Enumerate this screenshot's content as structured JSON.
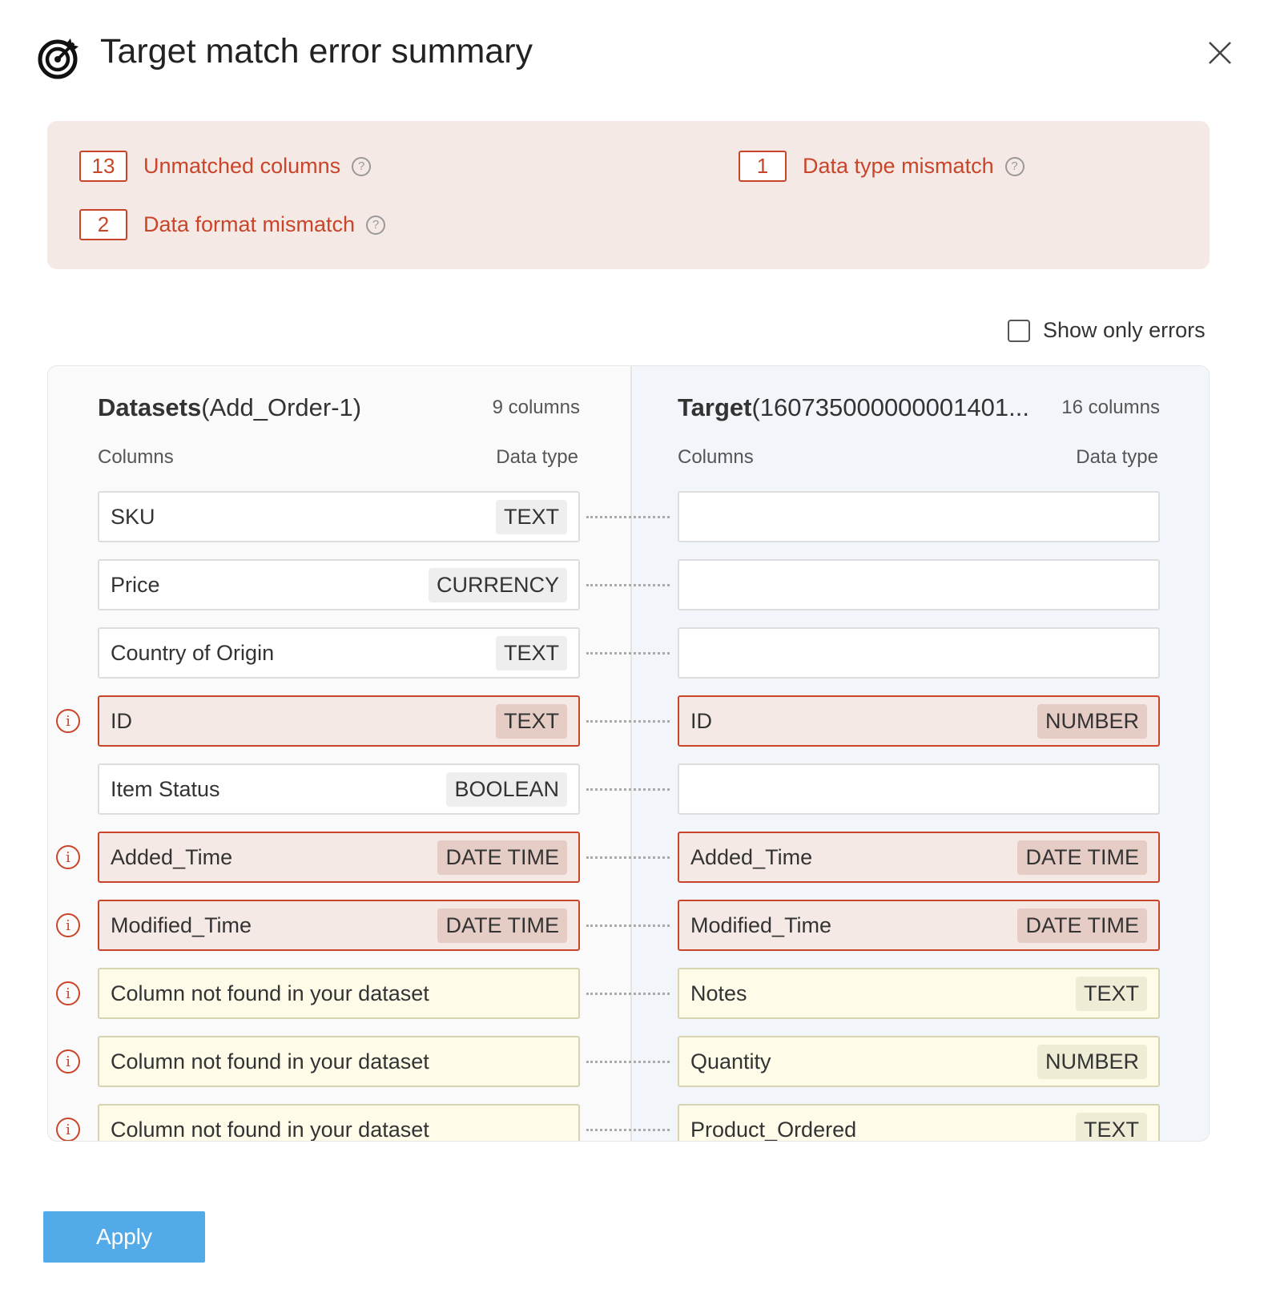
{
  "dialog": {
    "title": "Target match error summary",
    "icon": "target-icon",
    "close_icon": "close-icon"
  },
  "summary": {
    "items": [
      {
        "count": "13",
        "label": "Unmatched columns"
      },
      {
        "count": "1",
        "label": "Data type mismatch"
      },
      {
        "count": "2",
        "label": "Data format mismatch"
      }
    ],
    "help_glyph": "?"
  },
  "filter": {
    "label": "Show only errors",
    "checked": false
  },
  "source": {
    "title_bold": "Datasets",
    "title_rest": "(Add_Order-1)",
    "count": "9 columns",
    "col_header": "Columns",
    "type_header": "Data type"
  },
  "target": {
    "title_bold": "Target",
    "title_rest": "(160735000000001401...",
    "count": "16 columns",
    "col_header": "Columns",
    "type_header": "Data type"
  },
  "rows": [
    {
      "status": "ok",
      "source": {
        "name": "SKU",
        "type": "TEXT"
      },
      "target": {
        "name": "",
        "type": ""
      }
    },
    {
      "status": "ok",
      "source": {
        "name": "Price",
        "type": "CURRENCY"
      },
      "target": {
        "name": "",
        "type": ""
      }
    },
    {
      "status": "ok",
      "source": {
        "name": "Country of Origin",
        "type": "TEXT"
      },
      "target": {
        "name": "",
        "type": ""
      }
    },
    {
      "status": "error",
      "source": {
        "name": "ID",
        "type": "TEXT"
      },
      "target": {
        "name": "ID",
        "type": "NUMBER"
      }
    },
    {
      "status": "ok",
      "source": {
        "name": "Item Status",
        "type": "BOOLEAN"
      },
      "target": {
        "name": "",
        "type": ""
      }
    },
    {
      "status": "error",
      "source": {
        "name": "Added_Time",
        "type": "DATE TIME"
      },
      "target": {
        "name": "Added_Time",
        "type": "DATE TIME"
      }
    },
    {
      "status": "error",
      "source": {
        "name": "Modified_Time",
        "type": "DATE TIME"
      },
      "target": {
        "name": "Modified_Time",
        "type": "DATE TIME"
      }
    },
    {
      "status": "missing",
      "source": {
        "name": "Column not found in your dataset",
        "type": ""
      },
      "target": {
        "name": "Notes",
        "type": "TEXT"
      }
    },
    {
      "status": "missing",
      "source": {
        "name": "Column not found in your dataset",
        "type": ""
      },
      "target": {
        "name": "Quantity",
        "type": "NUMBER"
      }
    },
    {
      "status": "missing",
      "source": {
        "name": "Column not found in your dataset",
        "type": ""
      },
      "target": {
        "name": "Product_Ordered",
        "type": "TEXT"
      }
    }
  ],
  "info_glyph": "i",
  "footer": {
    "apply_label": "Apply"
  },
  "colors": {
    "error": "#c9452a",
    "error_bg": "#f5e9e6",
    "warning_bg": "#fefbe8",
    "primary": "#53aae8"
  }
}
